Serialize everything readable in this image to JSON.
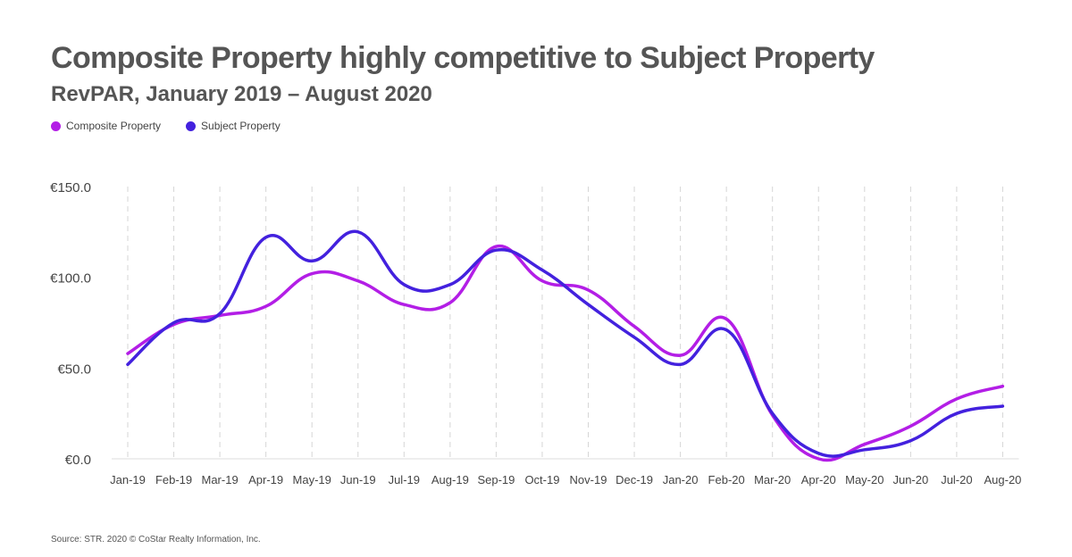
{
  "chart_data": {
    "type": "line",
    "title": "Composite Property highly competitive to Subject Property",
    "subtitle": "RevPAR, January 2019 – August 2020",
    "categories": [
      "Jan-19",
      "Feb-19",
      "Mar-19",
      "Apr-19",
      "May-19",
      "Jun-19",
      "Jul-19",
      "Aug-19",
      "Sep-19",
      "Oct-19",
      "Nov-19",
      "Dec-19",
      "Jan-20",
      "Feb-20",
      "Mar-20",
      "Apr-20",
      "May-20",
      "Jun-20",
      "Jul-20",
      "Aug-20"
    ],
    "series": [
      {
        "name": "Composite Property",
        "color": "#b31ee6",
        "values": [
          58,
          74,
          79,
          84,
          102,
          98,
          85,
          86,
          117,
          98,
          93,
          73,
          57,
          77,
          24,
          0,
          8,
          18,
          33,
          40
        ]
      },
      {
        "name": "Subject Property",
        "color": "#4321de",
        "values": [
          52,
          75,
          80,
          122,
          109,
          125,
          96,
          96,
          115,
          104,
          85,
          67,
          52,
          71,
          25,
          3,
          5,
          10,
          25,
          29
        ]
      }
    ],
    "ylim": [
      0,
      150
    ],
    "yticks": [
      0,
      50,
      100,
      150
    ],
    "ytick_labels": [
      "€0.0",
      "€50.0",
      "€100.0",
      "€150.0"
    ],
    "xlabel": "",
    "ylabel": "",
    "grid": "vertical-dashed",
    "legend": "top-left"
  },
  "footer": {
    "source": "Source: STR. 2020 © CoStar Realty Information, Inc."
  }
}
